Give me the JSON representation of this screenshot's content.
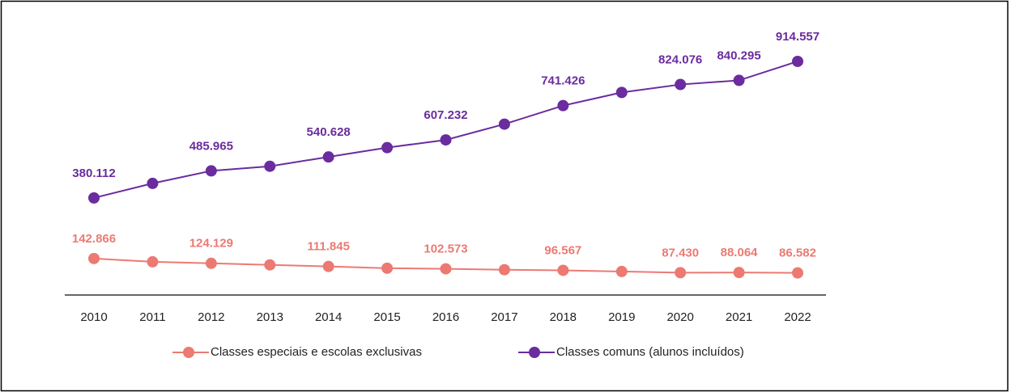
{
  "chart_data": {
    "type": "line",
    "categories": [
      "2010",
      "2011",
      "2012",
      "2013",
      "2014",
      "2015",
      "2016",
      "2017",
      "2018",
      "2019",
      "2020",
      "2021",
      "2022"
    ],
    "series": [
      {
        "name": "Classes especiais e escolas exclusivas",
        "color": "#ec7a72",
        "values": [
          142866,
          130000,
          124129,
          118000,
          111845,
          105000,
          102573,
          99000,
          96567,
          92000,
          87430,
          88064,
          86582
        ],
        "value_labels": [
          "142.866",
          null,
          "124.129",
          null,
          "111.845",
          null,
          "102.573",
          null,
          "96.567",
          null,
          "87.430",
          "88.064",
          "86.582"
        ]
      },
      {
        "name": "Classes comuns (alunos incluídos)",
        "color": "#6a2c9e",
        "values": [
          380112,
          437000,
          485965,
          504000,
          540628,
          577000,
          607232,
          669000,
          741426,
          793000,
          824076,
          840295,
          914557
        ],
        "value_labels": [
          "380.112",
          null,
          "485.965",
          null,
          "540.628",
          null,
          "607.232",
          null,
          "741.426",
          null,
          "824.076",
          "840.295",
          "914.557"
        ]
      }
    ],
    "ylim": [
      0,
      1060000
    ],
    "legend": "bottom"
  }
}
